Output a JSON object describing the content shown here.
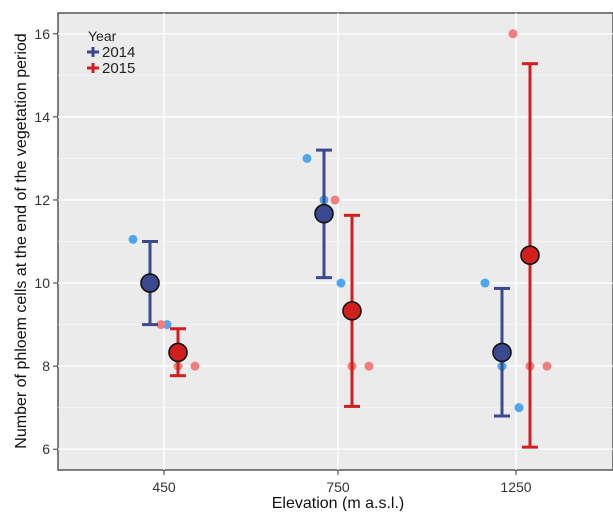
{
  "chart_data": {
    "type": "scatter",
    "title": "",
    "xlabel": "Elevation (m a.s.l.)",
    "ylabel": "Number of phloem cells at the end of the vegetation period",
    "categories": [
      "450",
      "750",
      "1250"
    ],
    "ylim": [
      5.5,
      16.5
    ],
    "yticks": [
      6,
      8,
      10,
      12,
      14,
      16
    ],
    "grid": true,
    "legend": {
      "title": "Year",
      "position": "top-left"
    },
    "series": [
      {
        "name": "2014",
        "color": "#3b4a8f",
        "raw_color": "#4da6ee",
        "points": [
          {
            "category": "450",
            "mean": 10.0,
            "low": 9.0,
            "high": 11.0,
            "raw": [
              11.05,
              10.0,
              9.0
            ]
          },
          {
            "category": "750",
            "mean": 11.67,
            "low": 10.13,
            "high": 13.2,
            "raw": [
              13.0,
              12.0,
              10.0
            ]
          },
          {
            "category": "1250",
            "mean": 8.33,
            "low": 6.8,
            "high": 9.87,
            "raw": [
              10.0,
              8.0,
              7.0
            ]
          }
        ]
      },
      {
        "name": "2015",
        "color": "#d11f1f",
        "raw_color": "#f07e7e",
        "points": [
          {
            "category": "450",
            "mean": 8.33,
            "low": 7.77,
            "high": 8.9,
            "raw": [
              9.0,
              8.0,
              8.0
            ]
          },
          {
            "category": "750",
            "mean": 9.33,
            "low": 7.03,
            "high": 11.63,
            "raw": [
              12.0,
              8.0,
              8.0
            ]
          },
          {
            "category": "1250",
            "mean": 10.67,
            "low": 6.05,
            "high": 15.28,
            "raw": [
              16.0,
              8.0,
              8.0
            ]
          }
        ]
      }
    ]
  }
}
